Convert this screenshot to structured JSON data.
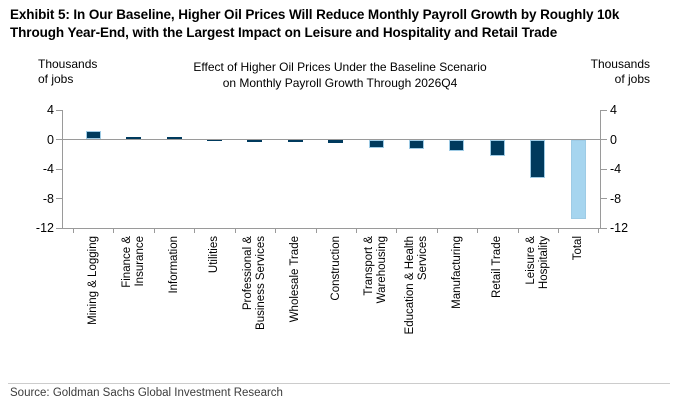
{
  "page": {
    "exhibit_title": "Exhibit 5: In Our Baseline, Higher Oil Prices Will Reduce Monthly Payroll Growth by Roughly 10k Through Year-End, with the Largest Impact on Leisure and Hospitality and Retail Trade",
    "source": "Source: Goldman Sachs Global Investment Research"
  },
  "chart_data": {
    "type": "bar",
    "title": "Effect of Higher Oil Prices Under the Baseline Scenario\non Monthly Payroll Growth Through 2026Q4",
    "left_axis_label": "Thousands\nof jobs",
    "right_axis_label": "Thousands\nof jobs",
    "units": "Thousands of jobs",
    "categories": [
      "Mining & Logging",
      "Finance &\nInsurance",
      "Information",
      "Utilities",
      "Professional &\nBusiness Services",
      "Wholesale Trade",
      "Construction",
      "Transport &\nWarehousing",
      "Education & Health\nServices",
      "Manufacturing",
      "Retail Trade",
      "Leisure &\nHospitality",
      "Total"
    ],
    "values": [
      1.2,
      0.4,
      0.3,
      -0.2,
      -0.3,
      -0.4,
      -0.5,
      -1.1,
      -1.3,
      -1.5,
      -2.3,
      -5.2,
      -10.8
    ],
    "ylim": [
      -12,
      4
    ],
    "yticks": [
      4,
      0,
      -4,
      -8,
      -12
    ],
    "legend": "none",
    "grid": "zero-line-only",
    "colors": {
      "sector_bar": "#003a5d",
      "total_bar": "#a6d5ef",
      "bar_outline": "#9ecbe5",
      "axis": "#9a9a9a"
    }
  }
}
